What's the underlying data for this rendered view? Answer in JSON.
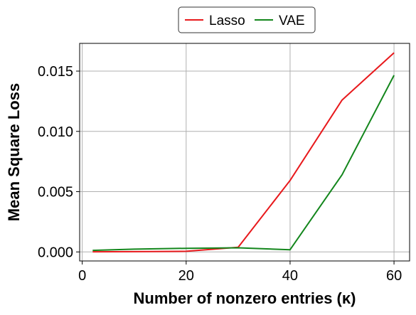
{
  "chart_data": {
    "type": "line",
    "xlabel": "Number of nonzero entries (κ)",
    "ylabel": "Mean Square Loss",
    "xlim": [
      -0.5,
      63
    ],
    "ylim": [
      -0.00075,
      0.0173
    ],
    "x_ticks": [
      0,
      20,
      40,
      60
    ],
    "x_tick_labels": [
      "0",
      "20",
      "40",
      "60"
    ],
    "y_ticks": [
      0.0,
      0.005,
      0.01,
      0.015
    ],
    "y_tick_labels": [
      "0.000",
      "0.005",
      "0.010",
      "0.015"
    ],
    "grid": true,
    "legend": "top-center, outside",
    "series": [
      {
        "name": "Lasso",
        "color": "#e8191c",
        "x": [
          2,
          10,
          20,
          30,
          40,
          50,
          60
        ],
        "y": [
          1e-05,
          2e-05,
          5e-05,
          0.00038,
          0.00593,
          0.0126,
          0.01652
        ]
      },
      {
        "name": "VAE",
        "color": "#13861c",
        "x": [
          2,
          10,
          20,
          30,
          40,
          50,
          60
        ],
        "y": [
          0.00013,
          0.00023,
          0.0003,
          0.00034,
          0.00018,
          0.0064,
          0.01465
        ]
      }
    ]
  }
}
